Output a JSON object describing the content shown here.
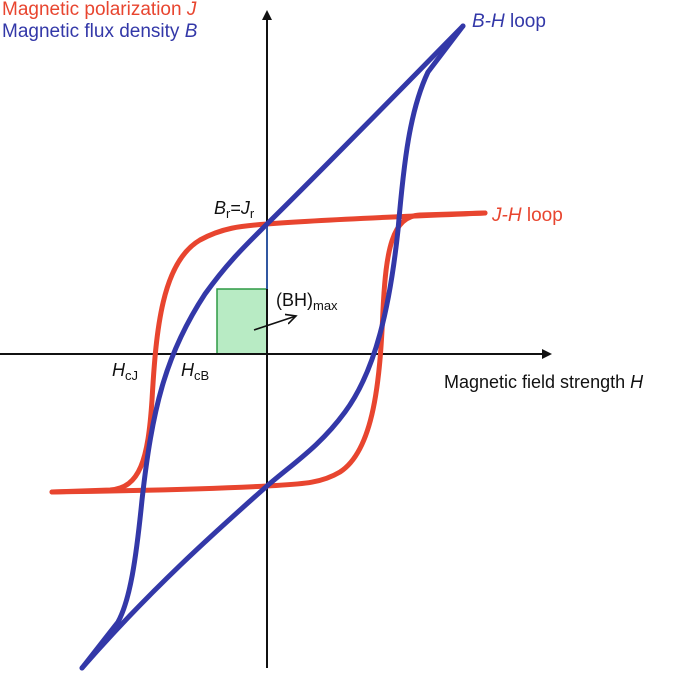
{
  "colors": {
    "j_curve": "#e8452f",
    "b_curve": "#3338a8",
    "axis": "#111111",
    "bhmax_fill": "#b8ebc4",
    "bhmax_stroke": "#2e9a45"
  },
  "legend": {
    "j_text": "Magnetic polarization",
    "j_symbol": "J",
    "b_text": "Magnetic flux density",
    "b_symbol": "B"
  },
  "labels": {
    "bh_loop_italic": "B-H",
    "bh_loop_text": "loop",
    "jh_loop_italic": "J-H",
    "jh_loop_text": "loop",
    "axis_text": "Magnetic field strength",
    "axis_symbol": "H",
    "br_main": "B",
    "br_sub": "r",
    "br_eq": "=",
    "jr_main": "J",
    "jr_sub": "r",
    "bhmax_main": "(BH)",
    "bhmax_sub": "max",
    "hcj_main": "H",
    "hcj_sub": "cJ",
    "hcb_main": "H",
    "hcb_sub": "cB"
  }
}
